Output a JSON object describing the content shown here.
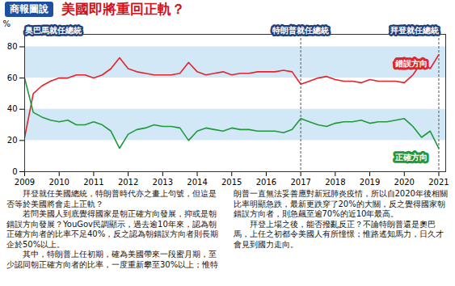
{
  "chart_data": {
    "type": "line",
    "title": "美國即將重回正軌？",
    "subtitle": "商報圖說",
    "y_label": "%",
    "x": [
      2009.0,
      2009.25,
      2009.5,
      2009.75,
      2010.0,
      2010.25,
      2010.5,
      2010.75,
      2011.0,
      2011.25,
      2011.5,
      2011.75,
      2012.0,
      2012.25,
      2012.5,
      2012.75,
      2013.0,
      2013.25,
      2013.5,
      2013.75,
      2014.0,
      2014.25,
      2014.5,
      2014.75,
      2015.0,
      2015.25,
      2015.5,
      2015.75,
      2016.0,
      2016.25,
      2016.5,
      2016.75,
      2017.0,
      2017.25,
      2017.5,
      2017.75,
      2018.0,
      2018.25,
      2018.5,
      2018.75,
      2019.0,
      2019.25,
      2019.5,
      2019.75,
      2020.0,
      2020.25,
      2020.5,
      2020.75,
      2021.0
    ],
    "series": [
      {
        "name": "錯誤方向",
        "color": "#e3232b",
        "values": [
          22,
          50,
          55,
          58,
          60,
          60,
          62,
          62,
          60,
          62,
          66,
          73,
          66,
          64,
          63,
          62,
          62,
          62,
          63,
          70,
          64,
          62,
          63,
          64,
          62,
          63,
          63,
          64,
          64,
          64,
          65,
          64,
          56,
          58,
          60,
          61,
          59,
          58,
          58,
          57,
          59,
          58,
          58,
          58,
          57,
          62,
          70,
          66,
          75
        ]
      },
      {
        "name": "正確方向",
        "color": "#1e9a3c",
        "values": [
          60,
          38,
          35,
          33,
          32,
          33,
          30,
          30,
          32,
          30,
          26,
          15,
          24,
          27,
          28,
          30,
          29,
          29,
          28,
          20,
          26,
          28,
          27,
          26,
          28,
          27,
          27,
          26,
          26,
          26,
          25,
          27,
          34,
          32,
          30,
          29,
          31,
          32,
          32,
          33,
          31,
          32,
          32,
          33,
          34,
          29,
          22,
          26,
          15
        ]
      }
    ],
    "xlim": [
      2009,
      2021.2
    ],
    "xticks": [
      2009,
      2010,
      2011,
      2012,
      2013,
      2014,
      2015,
      2016,
      2017,
      2018,
      2019,
      2020,
      2021
    ],
    "ylim": [
      0,
      88
    ],
    "yticks": [
      0,
      20,
      40,
      60,
      80
    ],
    "grid": true,
    "annotations": [
      {
        "x": 2009,
        "text": "奥巴馬就任總統"
      },
      {
        "x": 2017,
        "text": "特朗普就任總統"
      },
      {
        "x": 2021,
        "text": "拜登就任總統"
      }
    ],
    "text": [
      "拜登就任美國總統，特朗普時代亦之畫上句號，但這是否等於美國將會走上正軌？",
      "若問美國人到底覺得國家是朝正確方向發展，抑或是朝錯誤方向發展？YouGov民調顯示，過去逾10年來，認為朝正確方向者的比率不足40%，反之認為朝錯誤方向者則長期企於50%以上。",
      "其中，特朗普上任初期，確為美國帶來一段蜜月期，至少認同朝正確方向者的比率，一度重新攀至30%以上；惟特朗普一直無法妥善應對新冠肺炎疫情，所以自2020年後相關比率明顯急跌，最新更跌穿了20%的大關，反之覺得國家朝錯誤方向者，則急飆至逾70%的近10年最高。",
      "拜登上場之後，能否撥亂反正？不論特朗普還是奧巴馬，上任之初都令美國人有所憧憬；惟路遙知馬力，日久才會見到國力走向。"
    ]
  }
}
